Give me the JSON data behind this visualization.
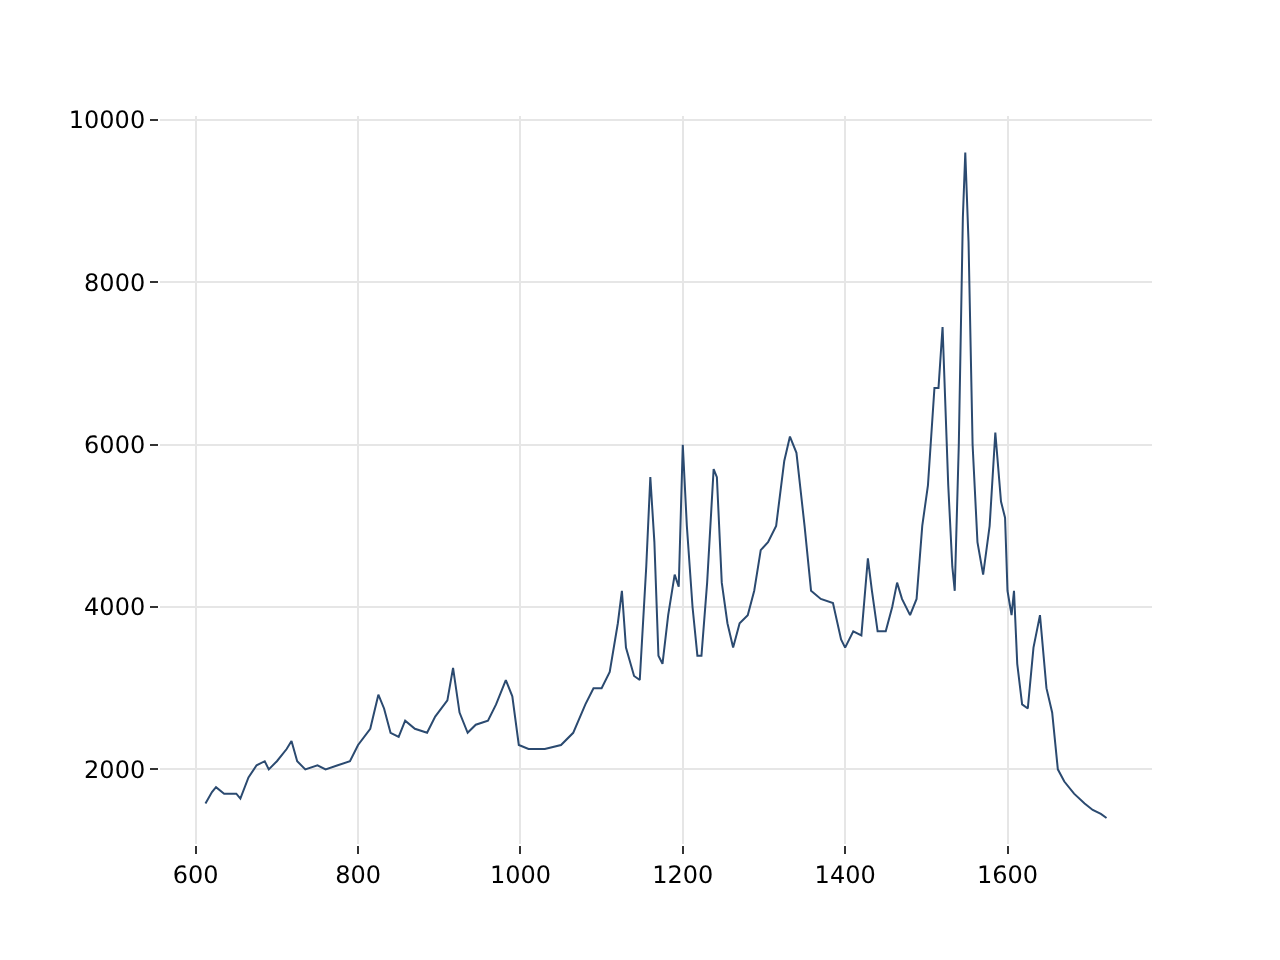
{
  "chart_data": {
    "type": "line",
    "xlim": [
      556,
      1778
    ],
    "ylim": [
      1080,
      10050
    ],
    "xticks": [
      600,
      800,
      1000,
      1200,
      1400,
      1600
    ],
    "yticks": [
      2000,
      4000,
      6000,
      8000,
      10000
    ],
    "grid": true,
    "x": [
      612,
      620,
      625,
      635,
      650,
      655,
      665,
      675,
      685,
      690,
      700,
      712,
      718,
      725,
      735,
      750,
      760,
      775,
      790,
      800,
      815,
      825,
      832,
      840,
      850,
      858,
      870,
      885,
      895,
      910,
      917,
      925,
      935,
      945,
      960,
      970,
      982,
      990,
      998,
      1010,
      1030,
      1050,
      1065,
      1080,
      1090,
      1100,
      1110,
      1120,
      1125,
      1130,
      1140,
      1147,
      1155,
      1160,
      1165,
      1170,
      1175,
      1182,
      1190,
      1195,
      1200,
      1205,
      1212,
      1218,
      1223,
      1230,
      1238,
      1242,
      1248,
      1255,
      1262,
      1270,
      1280,
      1288,
      1296,
      1305,
      1315,
      1325,
      1332,
      1340,
      1350,
      1358,
      1370,
      1385,
      1395,
      1400,
      1410,
      1420,
      1428,
      1433,
      1440,
      1450,
      1458,
      1464,
      1470,
      1480,
      1488,
      1495,
      1502,
      1510,
      1515,
      1520,
      1527,
      1532,
      1535,
      1540,
      1545,
      1548,
      1552,
      1557,
      1563,
      1570,
      1578,
      1585,
      1592,
      1597,
      1600,
      1605,
      1608,
      1612,
      1618,
      1625,
      1632,
      1640,
      1648,
      1655,
      1662,
      1670,
      1682,
      1695,
      1705,
      1715,
      1722
    ],
    "series": [
      {
        "color": "#2b4a70",
        "values": [
          1580,
          1720,
          1780,
          1700,
          1700,
          1640,
          1900,
          2050,
          2100,
          2000,
          2100,
          2250,
          2350,
          2100,
          2000,
          2050,
          2000,
          2050,
          2100,
          2300,
          2500,
          2920,
          2750,
          2450,
          2400,
          2600,
          2500,
          2450,
          2650,
          2850,
          3250,
          2700,
          2450,
          2550,
          2600,
          2800,
          3100,
          2900,
          2300,
          2250,
          2250,
          2300,
          2450,
          2800,
          3000,
          3000,
          3200,
          3800,
          4200,
          3500,
          3150,
          3100,
          4500,
          5600,
          4800,
          3400,
          3300,
          3900,
          4400,
          4250,
          6000,
          5000,
          4000,
          3400,
          3400,
          4300,
          5700,
          5600,
          4300,
          3800,
          3500,
          3800,
          3900,
          4200,
          4700,
          4800,
          5000,
          5800,
          6100,
          5900,
          5000,
          4200,
          4100,
          4050,
          3600,
          3500,
          3700,
          3650,
          4600,
          4200,
          3700,
          3700,
          4000,
          4300,
          4100,
          3900,
          4100,
          5000,
          5500,
          6700,
          6700,
          7450,
          5500,
          4500,
          4200,
          6000,
          8800,
          9600,
          8500,
          6000,
          4800,
          4400,
          5000,
          6150,
          5300,
          5100,
          4200,
          3900,
          4200,
          3300,
          2800,
          2750,
          3500,
          3900,
          3000,
          2700,
          2000,
          1850,
          1700,
          1580,
          1500,
          1450,
          1400
        ]
      }
    ]
  }
}
